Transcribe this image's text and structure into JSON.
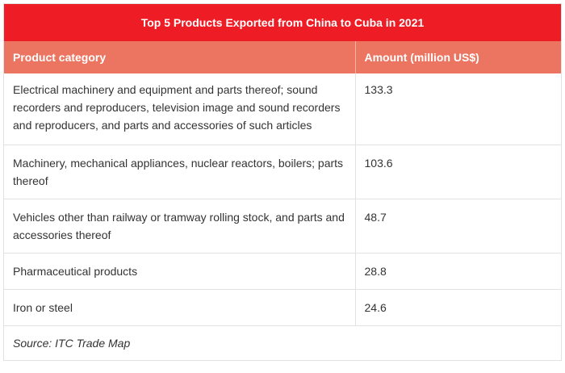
{
  "table": {
    "title": "Top 5 Products Exported from China to Cuba in 2021",
    "headers": [
      "Product category",
      "Amount (million US$)"
    ],
    "rows": [
      {
        "category": "Electrical machinery and equipment and parts thereof; sound recorders and reproducers, television image and sound recorders and reproducers, and parts and accessories of such articles",
        "amount": "133.3"
      },
      {
        "category": "Machinery, mechanical appliances, nuclear reactors, boilers; parts thereof",
        "amount": "103.6"
      },
      {
        "category": "Vehicles other than railway or tramway rolling stock, and parts and accessories thereof",
        "amount": "48.7"
      },
      {
        "category": "Pharmaceutical products",
        "amount": "28.8"
      },
      {
        "category": "Iron or steel",
        "amount": "24.6"
      }
    ],
    "source": "Source: ITC Trade Map"
  },
  "colors": {
    "title_bg": "#ee1c25",
    "header_bg": "#ec7561",
    "border": "#e2e2e2"
  }
}
